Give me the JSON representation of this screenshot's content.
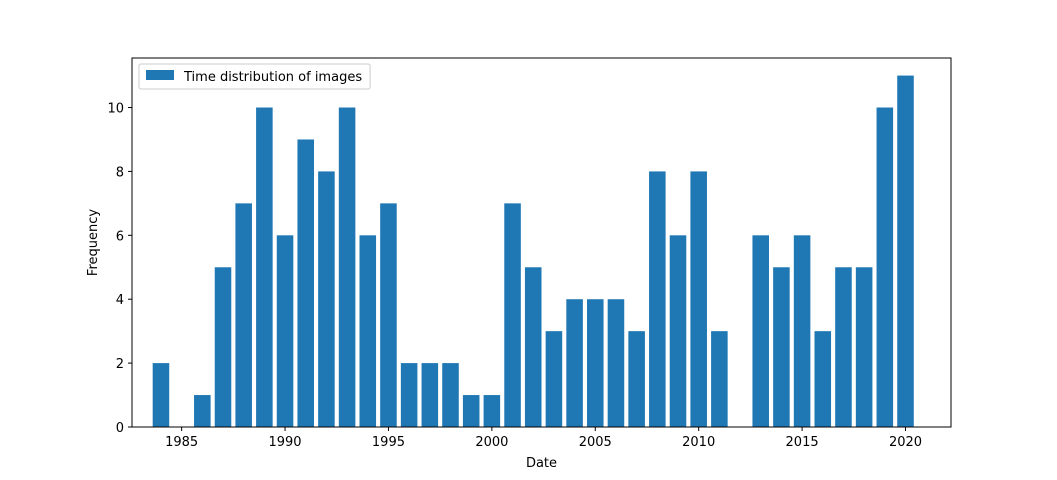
{
  "chart_data": {
    "type": "bar",
    "title": "",
    "xlabel": "Date",
    "ylabel": "Frequency",
    "x": [
      1984,
      1985,
      1986,
      1987,
      1988,
      1989,
      1990,
      1991,
      1992,
      1993,
      1994,
      1995,
      1996,
      1997,
      1998,
      1999,
      2000,
      2001,
      2002,
      2003,
      2004,
      2005,
      2006,
      2007,
      2008,
      2009,
      2010,
      2011,
      2012,
      2013,
      2014,
      2015,
      2016,
      2017,
      2018,
      2019,
      2020
    ],
    "series": [
      {
        "name": "Time distribution of images",
        "color": "#1f77b4",
        "values": [
          2,
          0,
          1,
          5,
          7,
          10,
          6,
          9,
          8,
          10,
          6,
          7,
          2,
          2,
          2,
          1,
          1,
          7,
          5,
          3,
          4,
          4,
          4,
          3,
          8,
          6,
          8,
          3,
          0,
          6,
          5,
          6,
          3,
          5,
          5,
          10,
          11
        ]
      }
    ],
    "xlim": [
      1982.6,
      2022.2
    ],
    "ylim": [
      0,
      11.55
    ],
    "xticks": [
      "1985",
      "1990",
      "1995",
      "2000",
      "2005",
      "2010",
      "2015",
      "2020"
    ],
    "xtick_values": [
      1985,
      1990,
      1995,
      2000,
      2005,
      2010,
      2015,
      2020
    ],
    "yticks": [
      "0",
      "2",
      "4",
      "6",
      "8",
      "10"
    ],
    "ytick_values": [
      0,
      2,
      4,
      6,
      8,
      10
    ],
    "grid": false,
    "legend": "upper-left"
  }
}
